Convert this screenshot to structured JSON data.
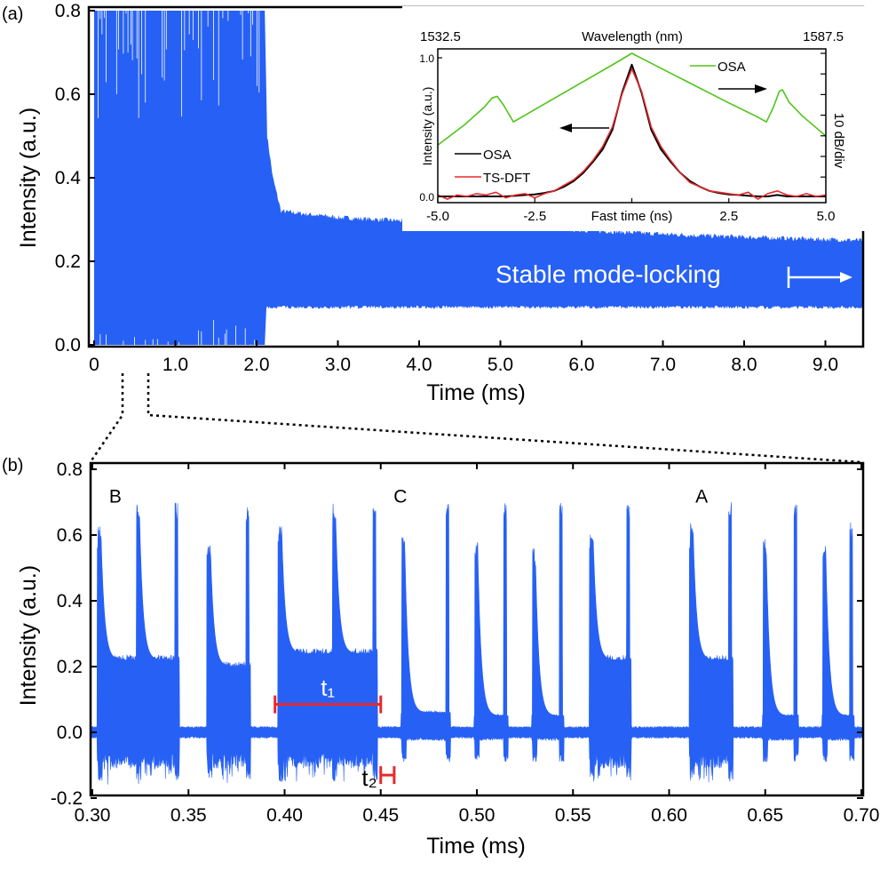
{
  "colors": {
    "signal": "#2660f5",
    "osa_spectrum": "#52c41a",
    "osa_pulse": "#000000",
    "tsdft": "#e8282c",
    "marker": "#e8282c",
    "axis": "#000000"
  },
  "chart_data": [
    {
      "id": "panel-a",
      "type": "area",
      "panel_label": "(a)",
      "xlabel": "Time (ms)",
      "ylabel": "Intensity (a.u.)",
      "xlim": [
        0,
        9.5
      ],
      "ylim": [
        0,
        0.8
      ],
      "xticks": [
        0,
        1,
        2,
        3,
        4,
        5,
        6,
        7,
        8,
        9
      ],
      "xtick_labels": [
        "0",
        "1.0",
        "2.0",
        "3.0",
        "4.0",
        "5.0",
        "6.0",
        "7.0",
        "8.0",
        "9.0"
      ],
      "yticks": [
        0,
        0.2,
        0.4,
        0.6,
        0.8
      ],
      "ytick_labels": [
        "0.0",
        "0.2",
        "0.4",
        "0.6",
        "0.8"
      ],
      "upper_envelope": [
        [
          0,
          0.8
        ],
        [
          2.1,
          0.8
        ],
        [
          2.13,
          0.5
        ],
        [
          2.2,
          0.4
        ],
        [
          2.3,
          0.32
        ],
        [
          3,
          0.305
        ],
        [
          4,
          0.295
        ],
        [
          5,
          0.285
        ],
        [
          6,
          0.275
        ],
        [
          7,
          0.265
        ],
        [
          8,
          0.258
        ],
        [
          9.5,
          0.25
        ]
      ],
      "lower_envelope": [
        [
          0,
          0.0
        ],
        [
          2.1,
          0.0
        ],
        [
          2.12,
          0.09
        ],
        [
          9.5,
          0.09
        ]
      ],
      "annotation": "Stable mode-locking",
      "zoom_range": [
        0.3,
        0.7
      ]
    },
    {
      "id": "panel-a-inset",
      "type": "line",
      "xlabel": "Fast time (ns)",
      "ylabel": "Intensity (a.u.)",
      "top_xlabel": "Wavelength (nm)",
      "top_xtick_labels": [
        "1532.5",
        "1587.5"
      ],
      "right_ylabel": "10 dB/div",
      "xlim": [
        -5,
        5
      ],
      "ylim": [
        -0.05,
        1.05
      ],
      "xticks": [
        -5,
        -2.5,
        0,
        2.5,
        5
      ],
      "xtick_labels": [
        "-5.0",
        "-2.5",
        "Fast time (ns)",
        "2.5",
        "5.0"
      ],
      "yticks": [
        0,
        1
      ],
      "ytick_labels": [
        "0.0",
        "1.0"
      ],
      "series": [
        {
          "name": "OSA",
          "axis": "right",
          "unit": "dB",
          "color": "#52c41a",
          "points": [
            [
              -5,
              -11.1
            ],
            [
              -4.3,
              -8.6
            ],
            [
              -3.8,
              -6.5
            ],
            [
              -3.6,
              -5.4
            ],
            [
              -3.47,
              -5.2
            ],
            [
              -3.3,
              -6.3
            ],
            [
              -3.05,
              -8.3
            ],
            [
              -2.5,
              -6.8
            ],
            [
              -1.5,
              -4.1
            ],
            [
              -0.5,
              -1.4
            ],
            [
              0,
              0
            ],
            [
              0.5,
              -1.2
            ],
            [
              1.5,
              -3.6
            ],
            [
              2.5,
              -6.0
            ],
            [
              3.2,
              -7.6
            ],
            [
              3.47,
              -8.3
            ],
            [
              3.65,
              -6.5
            ],
            [
              3.8,
              -4.6
            ],
            [
              3.88,
              -4.4
            ],
            [
              4.05,
              -5.9
            ],
            [
              4.4,
              -7.6
            ],
            [
              5,
              -10.0
            ]
          ]
        },
        {
          "name": "OSA",
          "axis": "left",
          "color": "#000000",
          "x": [
            -5,
            -4.75,
            -4.5,
            -4.25,
            -4,
            -3.75,
            -3.5,
            -3.25,
            -3,
            -2.75,
            -2.5,
            -2.25,
            -2,
            -1.75,
            -1.5,
            -1.25,
            -1,
            -0.75,
            -0.5,
            -0.25,
            0,
            0.25,
            0.5,
            0.75,
            1,
            1.25,
            1.5,
            1.75,
            2,
            2.25,
            2.5,
            2.75,
            3,
            3.25,
            3.5,
            3.75,
            4,
            4.25,
            4.5,
            4.75,
            5
          ],
          "y": [
            0,
            0,
            0,
            0,
            0,
            0,
            0,
            0,
            0.005,
            0.01,
            0.015,
            0.025,
            0.04,
            0.07,
            0.11,
            0.17,
            0.25,
            0.34,
            0.48,
            0.75,
            0.95,
            0.75,
            0.48,
            0.34,
            0.25,
            0.17,
            0.11,
            0.07,
            0.04,
            0.025,
            0.015,
            0.01,
            0.005,
            0,
            0,
            0.01,
            0,
            0,
            0,
            0,
            0
          ]
        },
        {
          "name": "TS-DFT",
          "axis": "left",
          "color": "#e8282c",
          "x": [
            -5,
            -4.75,
            -4.5,
            -4.25,
            -4,
            -3.75,
            -3.5,
            -3.25,
            -3,
            -2.75,
            -2.5,
            -2.25,
            -2,
            -1.75,
            -1.5,
            -1.25,
            -1,
            -0.75,
            -0.5,
            -0.25,
            0,
            0.25,
            0.5,
            0.75,
            1,
            1.25,
            1.5,
            1.75,
            2,
            2.25,
            2.5,
            2.75,
            3,
            3.25,
            3.5,
            3.75,
            4,
            4.25,
            4.5,
            4.75,
            5
          ],
          "y": [
            0.01,
            -0.02,
            0.01,
            0,
            0.02,
            0.01,
            0.03,
            -0.01,
            0.01,
            0.02,
            -0.01,
            0.02,
            0.04,
            0.08,
            0.12,
            0.18,
            0.26,
            0.36,
            0.5,
            0.74,
            0.92,
            0.76,
            0.5,
            0.36,
            0.26,
            0.17,
            0.1,
            0.07,
            0.04,
            0.03,
            0.02,
            0.01,
            0.03,
            -0.02,
            0.02,
            0.04,
            0.01,
            0,
            0.02,
            0,
            0.01
          ]
        }
      ],
      "legend": [
        "OSA",
        "TS-DFT"
      ],
      "legend_placement": "bottom-left"
    },
    {
      "id": "panel-b",
      "type": "area",
      "panel_label": "(b)",
      "xlabel": "Time (ms)",
      "ylabel": "Intensity (a.u.)",
      "xlim": [
        0.3,
        0.7
      ],
      "ylim": [
        -0.2,
        0.8
      ],
      "xticks": [
        0.3,
        0.35,
        0.4,
        0.45,
        0.5,
        0.55,
        0.6,
        0.65,
        0.7
      ],
      "xtick_labels": [
        "0.30",
        "0.35",
        "0.40",
        "0.45",
        "0.50",
        "0.55",
        "0.60",
        "0.65",
        "0.70"
      ],
      "yticks": [
        -0.2,
        0,
        0.2,
        0.4,
        0.6,
        0.8
      ],
      "ytick_labels": [
        "-0.2",
        "0.0",
        "0.2",
        "0.4",
        "0.6",
        "0.8"
      ],
      "pulse_groups": [
        {
          "kind": "burst",
          "plateau": 0.22,
          "spikes": [
            [
              0.304,
              0.63
            ],
            [
              0.324,
              0.7
            ],
            [
              0.344,
              0.7
            ]
          ]
        },
        {
          "kind": "burst",
          "plateau": 0.2,
          "spikes": [
            [
              0.361,
              0.57
            ],
            [
              0.381,
              0.7
            ]
          ]
        },
        {
          "kind": "burst",
          "plateau": 0.24,
          "spikes": [
            [
              0.398,
              0.64
            ],
            [
              0.426,
              0.7
            ],
            [
              0.447,
              0.7
            ]
          ]
        },
        {
          "kind": "clean",
          "plateau": 0.06,
          "spikes": [
            [
              0.462,
              0.6
            ],
            [
              0.485,
              0.7
            ]
          ]
        },
        {
          "kind": "clean",
          "plateau": 0.05,
          "spikes": [
            [
              0.5,
              0.58
            ],
            [
              0.515,
              0.7
            ]
          ]
        },
        {
          "kind": "clean",
          "plateau": 0.05,
          "spikes": [
            [
              0.53,
              0.56
            ],
            [
              0.544,
              0.7
            ]
          ]
        },
        {
          "kind": "burst",
          "plateau": 0.22,
          "spikes": [
            [
              0.56,
              0.62
            ],
            [
              0.579,
              0.7
            ]
          ]
        },
        {
          "kind": "burst",
          "plateau": 0.22,
          "spikes": [
            [
              0.612,
              0.64
            ],
            [
              0.632,
              0.7
            ]
          ]
        },
        {
          "kind": "clean",
          "plateau": 0.05,
          "spikes": [
            [
              0.65,
              0.6
            ],
            [
              0.666,
              0.7
            ]
          ]
        },
        {
          "kind": "clean",
          "plateau": 0.05,
          "spikes": [
            [
              0.681,
              0.58
            ],
            [
              0.695,
              0.64
            ]
          ]
        }
      ],
      "labels": [
        {
          "text": "B",
          "t": 0.305,
          "y": 0.72
        },
        {
          "text": "C",
          "t": 0.453,
          "y": 0.72
        },
        {
          "text": "A",
          "t": 0.61,
          "y": 0.72
        }
      ],
      "markers": [
        {
          "label": "t₁",
          "t_start": 0.395,
          "t_end": 0.45,
          "y": 0.085
        },
        {
          "label": "t₂",
          "t_start": 0.45,
          "t_end": 0.457,
          "y": -0.13
        }
      ]
    }
  ]
}
